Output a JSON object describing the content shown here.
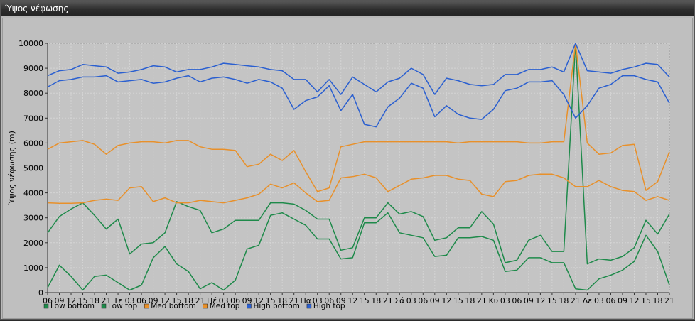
{
  "window": {
    "title": "Ύψος νέφωσης"
  },
  "chart_data": {
    "type": "line",
    "title": "",
    "xlabel": "",
    "ylabel": "Ύψος νέφωσης (m)",
    "ylim": [
      0,
      10000
    ],
    "yticks": [
      0,
      1000,
      2000,
      3000,
      4000,
      5000,
      6000,
      7000,
      8000,
      9000,
      10000
    ],
    "grid": true,
    "legend_position": "bottom-left",
    "x": [
      "06",
      "09",
      "12",
      "15",
      "18",
      "21",
      "Τε",
      "03",
      "06",
      "09",
      "12",
      "15",
      "18",
      "21",
      "Πέ",
      "03",
      "06",
      "09",
      "12",
      "15",
      "18",
      "21",
      "Πα",
      "03",
      "06",
      "09",
      "12",
      "15",
      "18",
      "21",
      "Σά",
      "03",
      "06",
      "09",
      "12",
      "15",
      "18",
      "21",
      "Κυ",
      "03",
      "06",
      "09",
      "12",
      "15",
      "18",
      "21",
      "Δε",
      "03",
      "06",
      "09",
      "12",
      "15",
      "18",
      "21"
    ],
    "series": [
      {
        "name": "Low bottom",
        "color": "#1e8a4a",
        "values": [
          200,
          1100,
          650,
          100,
          650,
          700,
          400,
          100,
          300,
          1400,
          1850,
          1150,
          850,
          150,
          400,
          100,
          500,
          1750,
          1900,
          3100,
          3200,
          2950,
          2700,
          2150,
          2150,
          1350,
          1400,
          2800,
          2800,
          3200,
          2400,
          2300,
          2200,
          1450,
          1500,
          2200,
          2200,
          2250,
          2100,
          850,
          900,
          1400,
          1400,
          1200,
          1200,
          150,
          100,
          550,
          700,
          900,
          1250,
          2300,
          1650,
          300
        ]
      },
      {
        "name": "Low top",
        "color": "#1e8a4a",
        "values": [
          2400,
          3050,
          3350,
          3600,
          3100,
          2550,
          2950,
          1550,
          1950,
          2000,
          2400,
          3650,
          3450,
          3300,
          2400,
          2550,
          2900,
          2900,
          2900,
          3600,
          3600,
          3550,
          3300,
          2950,
          2950,
          1700,
          1800,
          3000,
          3000,
          3600,
          3150,
          3250,
          3050,
          2100,
          2200,
          2600,
          2600,
          3250,
          2750,
          1200,
          1300,
          2100,
          2300,
          1650,
          1650,
          10000,
          1150,
          1350,
          1300,
          1450,
          1800,
          2900,
          2350,
          3150
        ]
      },
      {
        "name": "Med bottom",
        "color": "#e8902a",
        "values": [
          3600,
          3580,
          3580,
          3600,
          3700,
          3750,
          3700,
          4200,
          4250,
          3650,
          3800,
          3600,
          3600,
          3700,
          3650,
          3600,
          3700,
          3800,
          3950,
          4350,
          4200,
          4400,
          4000,
          3650,
          3700,
          4600,
          4650,
          4750,
          4600,
          4050,
          4300,
          4550,
          4600,
          4700,
          4700,
          4550,
          4500,
          3950,
          3850,
          4450,
          4500,
          4700,
          4750,
          4750,
          4600,
          4250,
          4250,
          4500,
          4250,
          4100,
          4050,
          3700,
          3850,
          3700
        ]
      },
      {
        "name": "Med top",
        "color": "#e8902a",
        "values": [
          5750,
          6000,
          6050,
          6100,
          5950,
          5550,
          5900,
          6000,
          6050,
          6050,
          6000,
          6100,
          6100,
          5850,
          5750,
          5750,
          5700,
          5050,
          5150,
          5550,
          5300,
          5700,
          4850,
          4050,
          4200,
          5850,
          5950,
          6050,
          6050,
          6050,
          6050,
          6050,
          6050,
          6050,
          6050,
          6000,
          6050,
          6050,
          6050,
          6050,
          6050,
          6000,
          6000,
          6050,
          6050,
          10000,
          6000,
          5550,
          5600,
          5900,
          5950,
          4100,
          4450,
          5650
        ]
      },
      {
        "name": "High bottom",
        "color": "#2a5fd0",
        "values": [
          8250,
          8500,
          8550,
          8650,
          8650,
          8700,
          8450,
          8500,
          8550,
          8400,
          8450,
          8600,
          8700,
          8450,
          8600,
          8650,
          8550,
          8400,
          8550,
          8450,
          8200,
          7350,
          7700,
          7850,
          8300,
          7300,
          7950,
          6750,
          6650,
          7450,
          7800,
          8400,
          8200,
          7050,
          7500,
          7150,
          7000,
          6950,
          7350,
          8100,
          8200,
          8450,
          8450,
          8500,
          7950,
          7000,
          7500,
          8200,
          8350,
          8700,
          8700,
          8550,
          8450,
          7600
        ]
      },
      {
        "name": "High top",
        "color": "#2a5fd0",
        "values": [
          8700,
          8900,
          8950,
          9150,
          9100,
          9050,
          8800,
          8850,
          8950,
          9100,
          9050,
          8850,
          8950,
          8950,
          9050,
          9200,
          9150,
          9100,
          9050,
          8950,
          8900,
          8550,
          8550,
          8050,
          8550,
          7950,
          8650,
          8350,
          8050,
          8450,
          8600,
          9000,
          8750,
          7950,
          8600,
          8500,
          8350,
          8300,
          8350,
          8750,
          8750,
          8950,
          8950,
          9050,
          8850,
          10000,
          8900,
          8850,
          8800,
          8950,
          9050,
          9200,
          9150,
          8650
        ]
      }
    ]
  }
}
